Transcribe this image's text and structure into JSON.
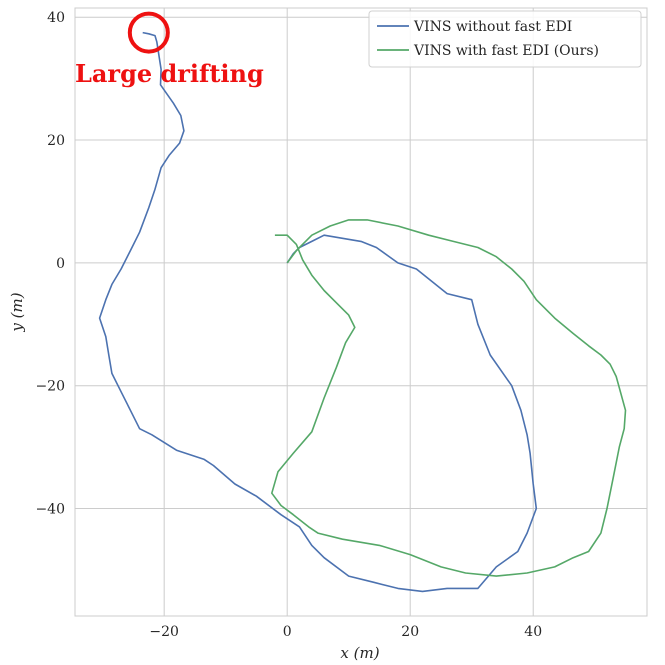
{
  "chart_data": {
    "type": "line",
    "xlabel": "x (m)",
    "ylabel": "y (m)",
    "xlim": [
      -34.5,
      58.5
    ],
    "ylim": [
      -57.5,
      41.5
    ],
    "x_ticks": [
      -20,
      0,
      20,
      40
    ],
    "y_ticks": [
      40,
      20,
      0,
      -20,
      -40
    ],
    "x_tick_labels": [
      "−20",
      "0",
      "20",
      "40"
    ],
    "y_tick_labels": [
      "40",
      "20",
      "0",
      "−20",
      "−40"
    ],
    "grid": true,
    "legend_position": "top-right",
    "series": [
      {
        "name": "VINS without fast EDI",
        "color": "#4c72b0",
        "points": [
          [
            -23.5,
            37.5
          ],
          [
            -22.5,
            37.3
          ],
          [
            -21.5,
            37.0
          ],
          [
            -21.2,
            36.0
          ],
          [
            -20.5,
            31.5
          ],
          [
            -20.6,
            29.0
          ],
          [
            -18.5,
            26.0
          ],
          [
            -17.3,
            24.0
          ],
          [
            -16.8,
            21.5
          ],
          [
            -17.5,
            19.5
          ],
          [
            -19.2,
            17.5
          ],
          [
            -20.5,
            15.5
          ],
          [
            -21.5,
            12.0
          ],
          [
            -22.5,
            9.0
          ],
          [
            -24.0,
            5.0
          ],
          [
            -25.5,
            2.0
          ],
          [
            -27.0,
            -1.0
          ],
          [
            -28.5,
            -3.5
          ],
          [
            -29.5,
            -6.0
          ],
          [
            -30.5,
            -9.0
          ],
          [
            -29.5,
            -12.0
          ],
          [
            -29.0,
            -15.0
          ],
          [
            -28.5,
            -18.0
          ],
          [
            -27.0,
            -21.0
          ],
          [
            -25.5,
            -24.0
          ],
          [
            -24.0,
            -27.0
          ],
          [
            -22.0,
            -28.0
          ],
          [
            -18.0,
            -30.5
          ],
          [
            -13.5,
            -32.0
          ],
          [
            -12.0,
            -33.0
          ],
          [
            -8.5,
            -36.0
          ],
          [
            -5.0,
            -38.0
          ],
          [
            -1.0,
            -41.0
          ],
          [
            2.0,
            -43.0
          ],
          [
            4.0,
            -46.0
          ],
          [
            6.0,
            -48.0
          ],
          [
            10.0,
            -51.0
          ],
          [
            14.0,
            -52.0
          ],
          [
            18.0,
            -53.0
          ],
          [
            22.0,
            -53.5
          ],
          [
            26.0,
            -53.0
          ],
          [
            31.0,
            -53.0
          ],
          [
            34.0,
            -49.5
          ],
          [
            37.5,
            -47.0
          ],
          [
            39.0,
            -44.0
          ],
          [
            40.5,
            -40.0
          ],
          [
            40.0,
            -36.0
          ],
          [
            39.5,
            -31.0
          ],
          [
            39.0,
            -28.0
          ],
          [
            38.0,
            -24.0
          ],
          [
            36.5,
            -20.0
          ],
          [
            33.0,
            -15.0
          ],
          [
            31.0,
            -10.0
          ],
          [
            30.0,
            -6.0
          ],
          [
            26.0,
            -5.0
          ],
          [
            21.0,
            -1.0
          ],
          [
            18.0,
            0.0
          ],
          [
            14.5,
            2.5
          ],
          [
            12.0,
            3.5
          ],
          [
            9.0,
            4.0
          ],
          [
            6.0,
            4.5
          ],
          [
            4.0,
            3.5
          ],
          [
            2.0,
            2.5
          ],
          [
            1.0,
            1.5
          ],
          [
            0.0,
            0.0
          ]
        ]
      },
      {
        "name": "VINS with fast EDI (Ours)",
        "color": "#55a868",
        "points": [
          [
            0.0,
            0.0
          ],
          [
            1.5,
            2.0
          ],
          [
            4.0,
            4.5
          ],
          [
            7.0,
            6.0
          ],
          [
            10.0,
            7.0
          ],
          [
            13.0,
            7.0
          ],
          [
            18.0,
            6.0
          ],
          [
            23.0,
            4.5
          ],
          [
            27.0,
            3.5
          ],
          [
            31.0,
            2.5
          ],
          [
            34.0,
            1.0
          ],
          [
            36.5,
            -1.0
          ],
          [
            38.5,
            -3.0
          ],
          [
            40.5,
            -6.0
          ],
          [
            43.5,
            -9.0
          ],
          [
            46.5,
            -11.5
          ],
          [
            49.0,
            -13.5
          ],
          [
            51.0,
            -15.0
          ],
          [
            52.5,
            -16.5
          ],
          [
            53.5,
            -18.5
          ],
          [
            55.0,
            -24.0
          ],
          [
            54.8,
            -27.0
          ],
          [
            54.0,
            -30.0
          ],
          [
            53.0,
            -35.0
          ],
          [
            52.0,
            -40.0
          ],
          [
            51.0,
            -44.0
          ],
          [
            49.0,
            -47.0
          ],
          [
            46.5,
            -48.0
          ],
          [
            43.5,
            -49.5
          ],
          [
            39.0,
            -50.5
          ],
          [
            34.0,
            -51.0
          ],
          [
            29.0,
            -50.5
          ],
          [
            25.0,
            -49.5
          ],
          [
            20.0,
            -47.5
          ],
          [
            15.0,
            -46.0
          ],
          [
            9.0,
            -45.0
          ],
          [
            5.0,
            -44.0
          ],
          [
            3.5,
            -43.0
          ],
          [
            1.0,
            -41.0
          ],
          [
            -1.0,
            -39.5
          ],
          [
            -2.5,
            -37.5
          ],
          [
            -1.5,
            -34.0
          ],
          [
            1.0,
            -31.0
          ],
          [
            4.0,
            -27.5
          ],
          [
            6.0,
            -22.0
          ],
          [
            8.0,
            -17.0
          ],
          [
            9.5,
            -13.0
          ],
          [
            11.0,
            -10.5
          ],
          [
            10.0,
            -8.5
          ],
          [
            8.0,
            -6.5
          ],
          [
            6.0,
            -4.5
          ],
          [
            4.0,
            -2.0
          ],
          [
            2.5,
            0.5
          ],
          [
            1.5,
            3.0
          ],
          [
            0.0,
            4.5
          ],
          [
            -2.0,
            4.5
          ]
        ]
      }
    ],
    "annotations": [
      {
        "text": "Large drifting",
        "color": "#ee1111",
        "x": -22.5,
        "y": 37.5
      }
    ]
  }
}
